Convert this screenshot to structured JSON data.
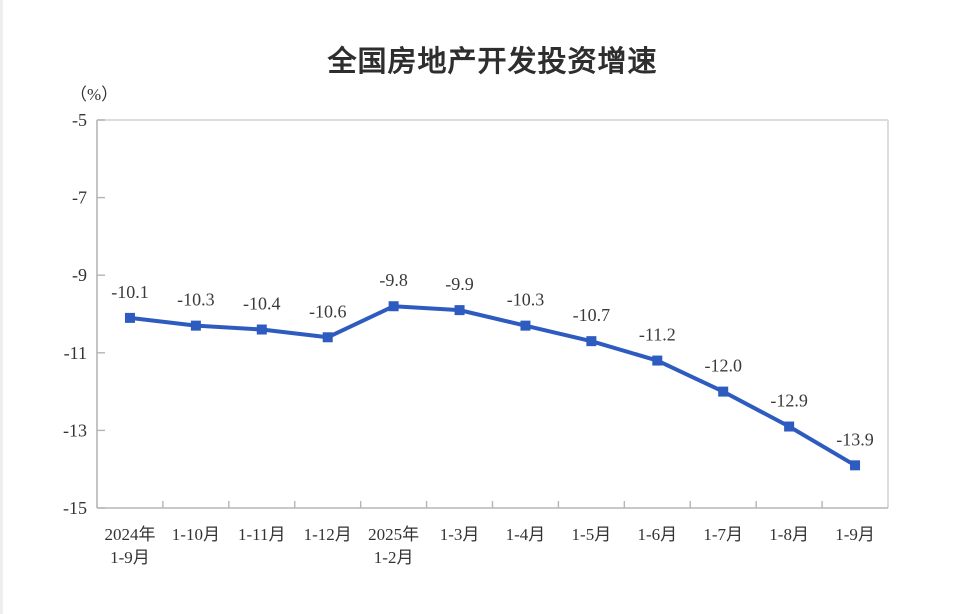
{
  "chart_data": {
    "type": "line",
    "title": "全国房地产开发投资增速",
    "unit_label": "（%）",
    "xlabel": "",
    "ylabel": "%",
    "categories": [
      "2024年\n1-9月",
      "1-10月",
      "1-11月",
      "1-12月",
      "2025年\n1-2月",
      "1-3月",
      "1-4月",
      "1-5月",
      "1-6月",
      "1-7月",
      "1-8月",
      "1-9月"
    ],
    "values": [
      -10.1,
      -10.3,
      -10.4,
      -10.6,
      -9.8,
      -9.9,
      -10.3,
      -10.7,
      -11.2,
      -12.0,
      -12.9,
      -13.9
    ],
    "data_labels": [
      "-10.1",
      "-10.3",
      "-10.4",
      "-10.6",
      "-9.8",
      "-9.9",
      "-10.3",
      "-10.7",
      "-11.2",
      "-12.0",
      "-12.9",
      "-13.9"
    ],
    "y_ticks": [
      -5,
      -7,
      -9,
      -11,
      -13,
      -15
    ],
    "ylim": [
      -15,
      -5
    ],
    "grid": false,
    "legend": "none",
    "marker": "square",
    "line_color": "#2d5bbf",
    "label_color": "#3a3a3a",
    "tick_text_color": "#333333",
    "title_color": "#2e2e2e",
    "axis_color": "#b5b5b5",
    "border_color": "#dcdcdc",
    "background_color": "#ffffff"
  }
}
